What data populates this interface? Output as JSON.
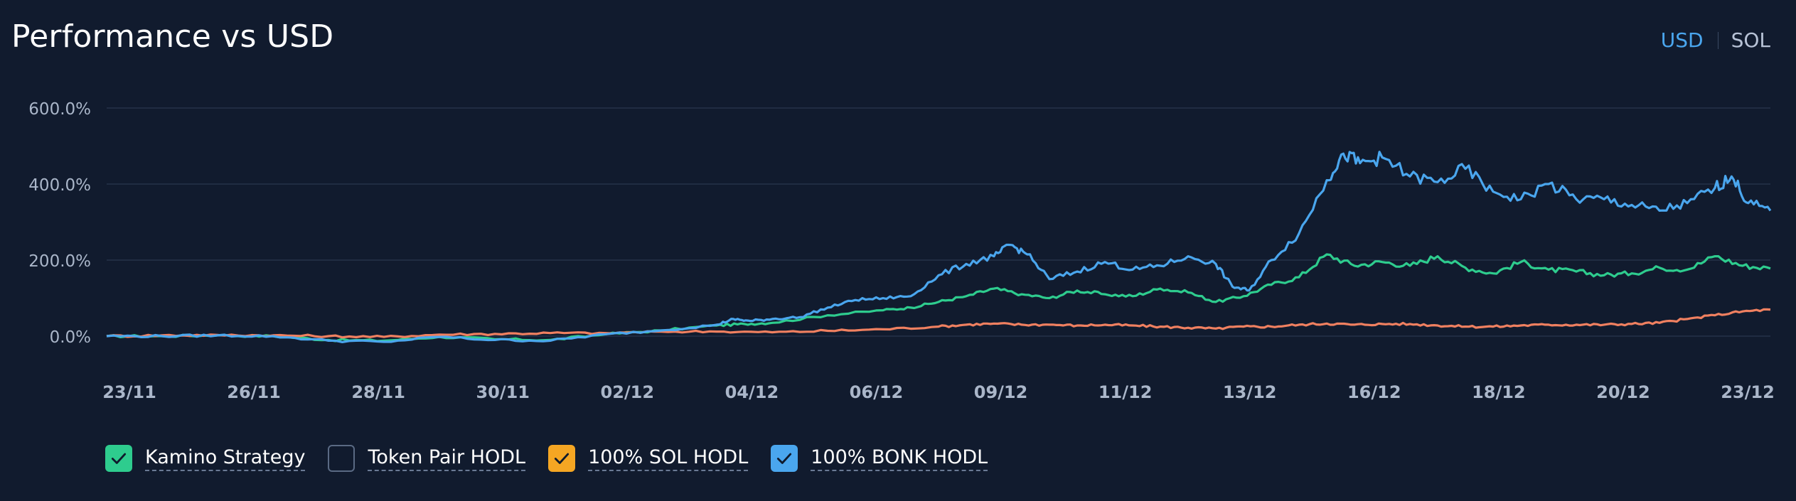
{
  "header": {
    "title": "Performance vs USD",
    "toggle": [
      {
        "label": "USD",
        "active": true
      },
      {
        "label": "SOL",
        "active": false
      }
    ]
  },
  "legend": [
    {
      "label": "Kamino Strategy",
      "checked": true,
      "color": "#2ecc8e"
    },
    {
      "label": "Token Pair HODL",
      "checked": false,
      "color": "#111b2e"
    },
    {
      "label": "100% SOL HODL",
      "checked": true,
      "color": "#f5a623"
    },
    {
      "label": "100% BONK HODL",
      "checked": true,
      "color": "#4aa6ee"
    }
  ],
  "chart_data": {
    "type": "line",
    "title": "Performance vs USD",
    "x_tick_labels": [
      "23/11",
      "26/11",
      "28/11",
      "30/11",
      "02/12",
      "04/12",
      "06/12",
      "09/12",
      "11/12",
      "13/12",
      "16/12",
      "18/12",
      "20/12",
      "23/12"
    ],
    "y_tick_labels": [
      "0.0%",
      "200.0%",
      "400.0%",
      "600.0%"
    ],
    "y_ticks": [
      0,
      200,
      400,
      600
    ],
    "ylim": [
      -80,
      600
    ],
    "xlim": [
      0,
      30
    ],
    "grid": "horizontal",
    "series": [
      {
        "name": "Kamino Strategy",
        "color": "#2ecc8e",
        "x": [
          0,
          1,
          2,
          3,
          4,
          5,
          6,
          7,
          8,
          9,
          10,
          11,
          11.5,
          12,
          13,
          14,
          14.5,
          15,
          15.5,
          16,
          16.5,
          17,
          17.5,
          18,
          18.5,
          19,
          19.5,
          20,
          20.5,
          21,
          21.5,
          22,
          22.5,
          23,
          23.5,
          24,
          24.5,
          25,
          25.5,
          26,
          26.5,
          27,
          27.5,
          28,
          28.5,
          29,
          29.5,
          30
        ],
        "values": [
          0,
          0,
          2,
          0,
          -10,
          -12,
          -2,
          -8,
          -10,
          5,
          15,
          28,
          32,
          35,
          55,
          68,
          75,
          90,
          105,
          125,
          110,
          100,
          120,
          110,
          105,
          125,
          115,
          90,
          105,
          135,
          155,
          215,
          185,
          195,
          185,
          210,
          180,
          165,
          195,
          175,
          170,
          160,
          165,
          180,
          175,
          210,
          185,
          178
        ]
      },
      {
        "name": "100% SOL HODL",
        "color": "#f08060",
        "x": [
          0,
          1,
          2,
          3,
          4,
          5,
          6,
          7,
          8,
          9,
          10,
          11,
          12,
          13,
          14,
          15,
          15.5,
          16,
          16.5,
          17,
          17.5,
          18,
          18.5,
          19,
          19.5,
          20,
          20.5,
          21,
          21.5,
          22,
          22.5,
          23,
          23.5,
          24,
          24.5,
          25,
          25.5,
          26,
          26.5,
          27,
          27.5,
          28,
          28.5,
          29,
          29.5,
          30
        ],
        "values": [
          0,
          2,
          3,
          2,
          0,
          -2,
          4,
          6,
          8,
          8,
          12,
          12,
          10,
          14,
          18,
          25,
          30,
          33,
          30,
          30,
          28,
          30,
          28,
          25,
          22,
          20,
          25,
          25,
          30,
          33,
          30,
          32,
          32,
          28,
          25,
          25,
          28,
          30,
          30,
          30,
          32,
          35,
          45,
          55,
          65,
          70
        ]
      },
      {
        "name": "100% BONK HODL",
        "color": "#4aa6ee",
        "x": [
          0,
          1,
          2,
          3,
          4,
          5,
          6,
          7,
          8,
          9,
          10,
          11,
          11.3,
          11.6,
          12,
          12.5,
          13,
          13.5,
          14,
          14.5,
          15,
          15.5,
          16,
          16.3,
          16.6,
          17,
          17.5,
          18,
          18.5,
          19,
          19.5,
          20,
          20.3,
          20.6,
          21,
          21.5,
          22,
          22.3,
          22.6,
          23,
          23.5,
          24,
          24.5,
          25,
          25.5,
          26,
          26.5,
          27,
          27.5,
          28,
          28.5,
          29,
          29.3,
          29.6,
          30
        ],
        "values": [
          0,
          0,
          2,
          0,
          -12,
          -15,
          -2,
          -10,
          -12,
          5,
          15,
          30,
          45,
          40,
          45,
          50,
          75,
          95,
          100,
          105,
          160,
          190,
          210,
          240,
          215,
          150,
          170,
          195,
          175,
          185,
          210,
          190,
          130,
          120,
          200,
          270,
          410,
          480,
          455,
          470,
          420,
          405,
          440,
          380,
          360,
          400,
          360,
          360,
          345,
          330,
          350,
          390,
          420,
          350,
          330
        ]
      }
    ]
  }
}
